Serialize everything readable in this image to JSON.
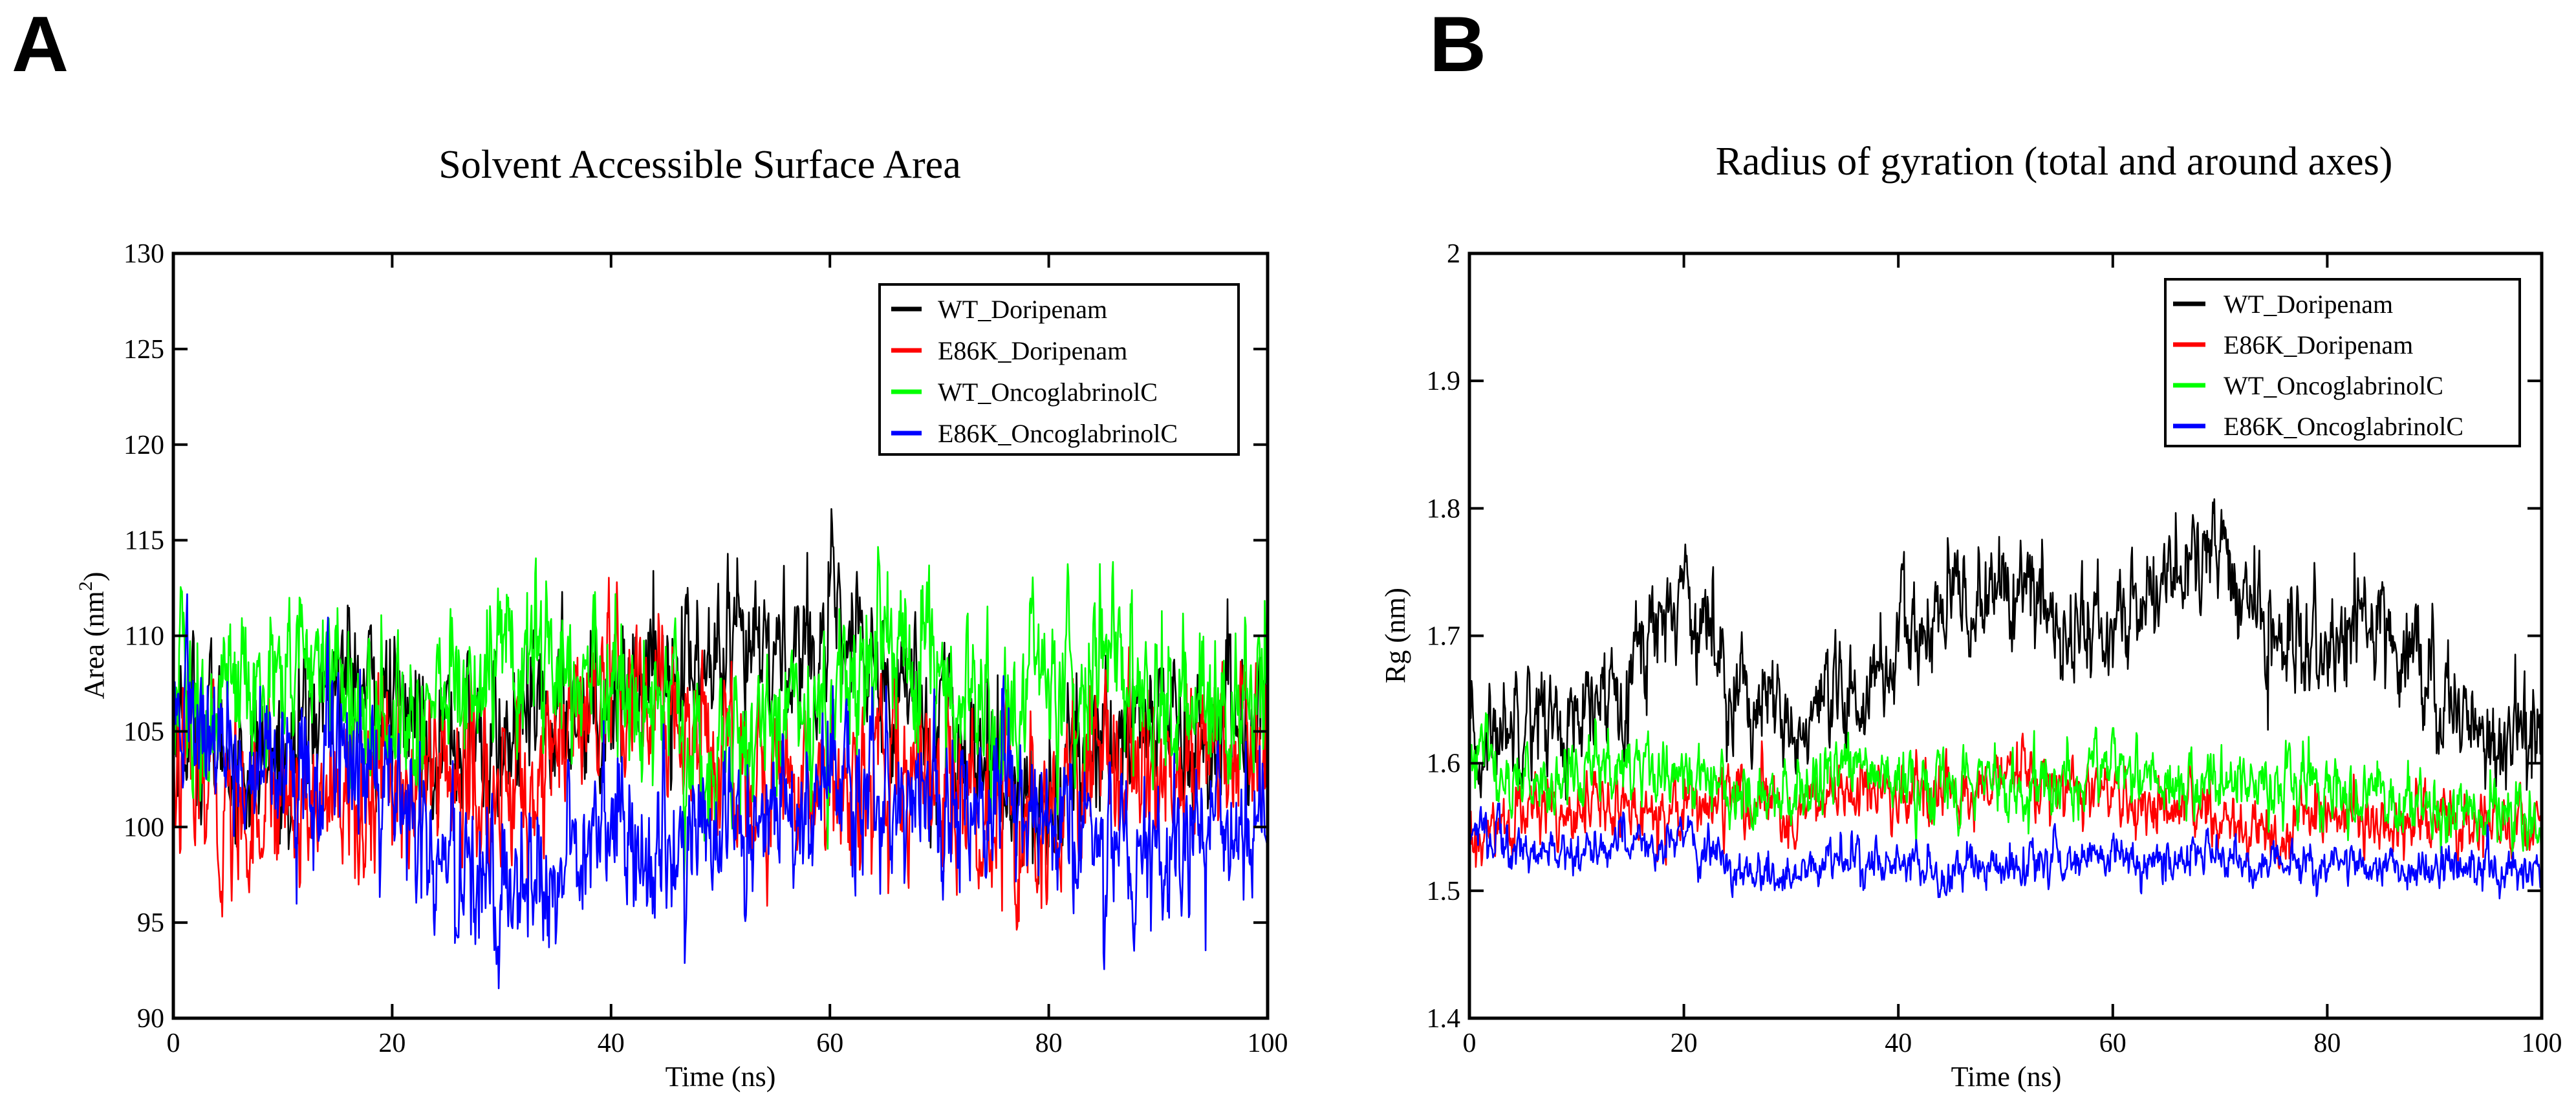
{
  "figure": {
    "panel_labels": [
      "A",
      "B"
    ]
  },
  "colors": {
    "WT_Doripenam": "#000000",
    "E86K_Doripenam": "#ff0000",
    "WT_OncoglabrinolC": "#00ff00",
    "E86K_OncoglabrinolC": "#0000ff"
  },
  "chart_data": [
    {
      "type": "line",
      "panel": "A",
      "title": "Solvent Accessible Surface Area",
      "xlabel": "Time (ns)",
      "ylabel_main": "Area (nm",
      "ylabel_sup": "2",
      "ylabel_close": ")",
      "xlim": [
        0,
        100
      ],
      "ylim": [
        90,
        130
      ],
      "xticks": [
        0,
        20,
        40,
        60,
        80,
        100
      ],
      "yticks": [
        90,
        95,
        100,
        105,
        110,
        115,
        120,
        125,
        130
      ],
      "legend_position": "top-right",
      "series": [
        {
          "name": "WT_Doripenam",
          "color": "#000000",
          "base": 107.2,
          "noise": 2.4,
          "x": [
            0,
            5,
            10,
            15,
            20,
            25,
            30,
            35,
            40,
            45,
            50,
            55,
            60,
            65,
            70,
            75,
            80,
            85,
            90,
            95,
            100
          ],
          "y": [
            106,
            104,
            103,
            108,
            106,
            105,
            104,
            106,
            107,
            109,
            108,
            109,
            110,
            108,
            106,
            103,
            101,
            105,
            106,
            104,
            106
          ]
        },
        {
          "name": "E86K_Doripenam",
          "color": "#ff0000",
          "base": 103.0,
          "noise": 2.6,
          "x": [
            0,
            5,
            10,
            15,
            20,
            25,
            30,
            35,
            40,
            45,
            50,
            55,
            60,
            65,
            70,
            75,
            80,
            85,
            90,
            95,
            100
          ],
          "y": [
            103,
            101,
            102,
            101,
            102,
            103,
            101,
            104,
            106,
            106,
            104,
            102,
            103,
            102,
            103,
            100,
            101,
            103,
            102,
            104,
            105
          ]
        },
        {
          "name": "WT_OncoglabrinolC",
          "color": "#00ff00",
          "base": 108.0,
          "noise": 2.6,
          "x": [
            0,
            5,
            10,
            15,
            20,
            25,
            30,
            35,
            40,
            45,
            50,
            55,
            60,
            65,
            70,
            75,
            80,
            85,
            90,
            95,
            100
          ],
          "y": [
            107,
            106,
            108,
            108,
            106,
            107,
            108,
            109,
            107,
            105,
            104,
            106,
            107,
            110,
            108,
            106,
            107,
            108,
            107,
            106,
            107
          ]
        },
        {
          "name": "E86K_OncoglabrinolC",
          "color": "#0000ff",
          "base": 100.5,
          "noise": 2.5,
          "x": [
            0,
            5,
            10,
            15,
            20,
            25,
            30,
            35,
            40,
            45,
            50,
            55,
            60,
            65,
            70,
            75,
            80,
            85,
            90,
            95,
            100
          ],
          "y": [
            107,
            104,
            101,
            104,
            103,
            97,
            96,
            98,
            100,
            98,
            100,
            101,
            102,
            101,
            100,
            102,
            101,
            100,
            99,
            99,
            100
          ]
        }
      ]
    },
    {
      "type": "line",
      "panel": "B",
      "title": "Radius of gyration (total and around axes)",
      "xlabel": "Time (ns)",
      "ylabel": "Rg (nm)",
      "xlim": [
        0,
        100
      ],
      "ylim": [
        1.4,
        2.0
      ],
      "xticks": [
        0,
        20,
        40,
        60,
        80,
        100
      ],
      "yticks": [
        1.4,
        1.5,
        1.6,
        1.7,
        1.8,
        1.9,
        2.0
      ],
      "ytick_labels": [
        "1.4",
        "1.5",
        "1.6",
        "1.7",
        "1.8",
        "1.9",
        "2"
      ],
      "legend_position": "top-right",
      "series": [
        {
          "name": "WT_Doripenam",
          "color": "#000000",
          "base": 1.68,
          "noise": 0.025,
          "x": [
            0,
            5,
            10,
            15,
            20,
            25,
            30,
            35,
            40,
            45,
            50,
            55,
            60,
            65,
            70,
            75,
            80,
            85,
            90,
            95,
            100
          ],
          "y": [
            1.6,
            1.65,
            1.62,
            1.68,
            1.74,
            1.66,
            1.62,
            1.64,
            1.69,
            1.72,
            1.74,
            1.71,
            1.7,
            1.75,
            1.76,
            1.7,
            1.68,
            1.72,
            1.66,
            1.62,
            1.62
          ]
        },
        {
          "name": "E86K_Doripenam",
          "color": "#ff0000",
          "base": 1.57,
          "noise": 0.015,
          "x": [
            0,
            5,
            10,
            15,
            20,
            25,
            30,
            35,
            40,
            45,
            50,
            55,
            60,
            65,
            70,
            75,
            80,
            85,
            90,
            95,
            100
          ],
          "y": [
            1.53,
            1.56,
            1.57,
            1.56,
            1.57,
            1.57,
            1.56,
            1.58,
            1.57,
            1.57,
            1.59,
            1.58,
            1.57,
            1.56,
            1.56,
            1.54,
            1.56,
            1.55,
            1.56,
            1.55,
            1.55
          ]
        },
        {
          "name": "WT_OncoglabrinolC",
          "color": "#00ff00",
          "base": 1.59,
          "noise": 0.016,
          "x": [
            0,
            5,
            10,
            15,
            20,
            25,
            30,
            35,
            40,
            45,
            50,
            55,
            60,
            65,
            70,
            75,
            80,
            85,
            90,
            95,
            100
          ],
          "y": [
            1.61,
            1.58,
            1.59,
            1.6,
            1.59,
            1.58,
            1.58,
            1.6,
            1.58,
            1.58,
            1.59,
            1.58,
            1.6,
            1.58,
            1.59,
            1.58,
            1.58,
            1.58,
            1.57,
            1.56,
            1.56
          ]
        },
        {
          "name": "E86K_OncoglabrinolC",
          "color": "#0000ff",
          "base": 1.525,
          "noise": 0.01,
          "x": [
            0,
            5,
            10,
            15,
            20,
            25,
            30,
            35,
            40,
            45,
            50,
            55,
            60,
            65,
            70,
            75,
            80,
            85,
            90,
            95,
            100
          ],
          "y": [
            1.55,
            1.53,
            1.53,
            1.54,
            1.54,
            1.52,
            1.51,
            1.53,
            1.52,
            1.51,
            1.52,
            1.52,
            1.53,
            1.52,
            1.53,
            1.52,
            1.52,
            1.52,
            1.52,
            1.52,
            1.51
          ]
        }
      ]
    }
  ]
}
